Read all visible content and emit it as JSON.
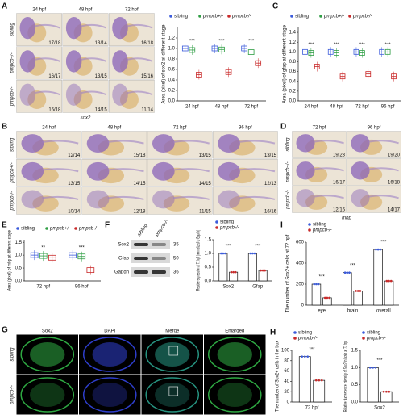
{
  "panel_labels": [
    "A",
    "B",
    "C",
    "D",
    "E",
    "F",
    "G",
    "H",
    "I"
  ],
  "panel_a": {
    "columns": [
      "24 hpf",
      "48 hpf",
      "72 hpf"
    ],
    "rows": [
      "sibling",
      "pmpcb+/-",
      "pmpcb-/-"
    ],
    "counts": [
      [
        "17/18",
        "13/14",
        "16/18"
      ],
      [
        "16/17",
        "13/15",
        "15/16"
      ],
      [
        "16/18",
        "14/15",
        "11/14"
      ]
    ],
    "gene": "sox2"
  },
  "panel_b": {
    "columns": [
      "24 hpf",
      "48 hpf",
      "72 hpf",
      "96 hpf"
    ],
    "rows": [
      "sibling",
      "pmpcb+/-",
      "pmpcb-/-"
    ],
    "counts": [
      [
        "12/14",
        "15/18",
        "13/15",
        "13/15"
      ],
      [
        "13/15",
        "14/15",
        "14/15",
        "12/13"
      ],
      [
        "10/14",
        "12/18",
        "11/15",
        "16/16"
      ]
    ]
  },
  "panel_d": {
    "columns": [
      "72 hpf",
      "96 hpf"
    ],
    "rows": [
      "sibling",
      "pmpcb+/-",
      "pmpcb-/-"
    ],
    "counts": [
      [
        "19/23",
        "19/20"
      ],
      [
        "16/17",
        "16/18"
      ],
      [
        "12/16",
        "14/17"
      ]
    ],
    "gene": "mbp"
  },
  "panel_f_blot": {
    "lanes": [
      "sibling",
      "pmpcb-/-"
    ],
    "proteins": [
      "Sox2",
      "Gfap",
      "Gapdh"
    ],
    "markers": [
      35,
      50,
      36
    ]
  },
  "panel_g": {
    "columns": [
      "Sox2",
      "DAPI",
      "Merge",
      "Enlarged"
    ],
    "rows": [
      "sibling",
      "pmpcb-/-"
    ]
  },
  "chart_data": [
    {
      "type": "box",
      "title": "Area (pixel) of sox2 at different stage",
      "categories": [
        "24 hpf",
        "48 hpf",
        "72 hpf"
      ],
      "series": [
        {
          "name": "sibling",
          "color": "#3b5bdb",
          "values": [
            1.0,
            1.0,
            1.0
          ]
        },
        {
          "name": "pmpcb+/-",
          "color": "#2f9e44",
          "values": [
            0.97,
            0.98,
            0.93
          ]
        },
        {
          "name": "pmpcb-/-",
          "color": "#c92a2a",
          "values": [
            0.5,
            0.55,
            0.72
          ]
        }
      ],
      "ylim": [
        0,
        1.4
      ],
      "yticks": [
        {
          "value": 0,
          "label": "0.0"
        },
        0.2,
        0.4,
        0.6,
        0.8,
        {
          "value": 1,
          "label": "1.0"
        },
        1.2
      ],
      "significance": [
        "***",
        "***",
        "***"
      ]
    },
    {
      "type": "box",
      "title": "Area (pixel) of gfap at different stage",
      "categories": [
        "24 hpf",
        "48 hpf",
        "72 hpf",
        "96 hpf"
      ],
      "series": [
        {
          "name": "sibling",
          "color": "#3b5bdb",
          "values": [
            1.0,
            1.0,
            1.0,
            1.0
          ]
        },
        {
          "name": "pmpcb+/-",
          "color": "#2f9e44",
          "values": [
            0.98,
            0.98,
            0.98,
            1.0
          ]
        },
        {
          "name": "pmpcb-/-",
          "color": "#c92a2a",
          "values": [
            0.7,
            0.5,
            0.55,
            0.5
          ]
        }
      ],
      "ylim": [
        0,
        1.5
      ],
      "yticks": [
        {
          "value": 0,
          "label": "0.0"
        },
        0.2,
        0.4,
        0.6,
        0.8,
        {
          "value": 1,
          "label": "1.0"
        },
        1.2,
        1.4
      ],
      "significance": [
        "***",
        "***",
        "***",
        "***"
      ]
    },
    {
      "type": "box",
      "title": "Area (pixel) of mbp at different stage",
      "categories": [
        "72 hpf",
        "96 hpf"
      ],
      "series": [
        {
          "name": "sibling",
          "color": "#3b5bdb",
          "values": [
            1.0,
            1.0
          ]
        },
        {
          "name": "pmpcb+/-",
          "color": "#2f9e44",
          "values": [
            0.97,
            0.95
          ]
        },
        {
          "name": "pmpcb-/-",
          "color": "#c92a2a",
          "values": [
            0.9,
            0.42
          ]
        }
      ],
      "ylim": [
        0,
        1.6
      ],
      "yticks": [
        {
          "value": 0,
          "label": "0.0"
        },
        0.5,
        {
          "value": 1,
          "label": "1.0"
        },
        1.5
      ],
      "significance": [
        "**",
        "***"
      ]
    },
    {
      "type": "bar",
      "title": "Relative expression at 72 hpf (normalized to Gapdh)",
      "categories": [
        "Sox2",
        "Gfap"
      ],
      "series": [
        {
          "name": "sibling",
          "color": "#3b5bdb",
          "values": [
            1.0,
            1.0
          ]
        },
        {
          "name": "pmpcb-/-",
          "color": "#c92a2a",
          "values": [
            0.32,
            0.38
          ]
        }
      ],
      "ylim": [
        0,
        1.5
      ],
      "yticks": [
        {
          "value": 0,
          "label": "0.0"
        },
        0.5,
        {
          "value": 1,
          "label": "1.0"
        },
        1.5
      ],
      "significance": [
        "***",
        "***"
      ]
    },
    {
      "type": "bar",
      "title": "The number of Sox2+ cells at 72 hpf",
      "categories": [
        "eye",
        "brain",
        "overall"
      ],
      "series": [
        {
          "name": "sibling",
          "color": "#3b5bdb",
          "values": [
            200,
            310,
            530
          ]
        },
        {
          "name": "pmpcb-/-",
          "color": "#c92a2a",
          "values": [
            70,
            135,
            230
          ]
        }
      ],
      "ylim": [
        0,
        600
      ],
      "yticks": [
        0,
        200,
        400,
        600
      ],
      "significance": [
        "***",
        "***",
        "***"
      ]
    },
    {
      "type": "bar",
      "title": "The number of Sox2+ cells in the box",
      "categories": [
        "72 hpf"
      ],
      "series": [
        {
          "name": "sibling",
          "color": "#3b5bdb",
          "values": [
            88
          ]
        },
        {
          "name": "pmpcb-/-",
          "color": "#c92a2a",
          "values": [
            42
          ]
        }
      ],
      "ylim": [
        0,
        100
      ],
      "yticks": [
        0,
        20,
        40,
        60,
        80,
        100
      ],
      "significance": [
        "***"
      ]
    },
    {
      "type": "bar",
      "title": "Relative fluorescence intensity of Sox2 in brain at 72 hpf",
      "categories": [
        "Sox2"
      ],
      "series": [
        {
          "name": "sibling",
          "color": "#3b5bdb",
          "values": [
            1.0
          ]
        },
        {
          "name": "pmpcb-/-",
          "color": "#c92a2a",
          "values": [
            0.3
          ]
        }
      ],
      "ylim": [
        0,
        1.5
      ],
      "yticks": [
        {
          "value": 0,
          "label": "0.0"
        },
        0.5,
        {
          "value": 1,
          "label": "1.0"
        },
        1.5
      ],
      "significance": [
        "***"
      ]
    }
  ]
}
